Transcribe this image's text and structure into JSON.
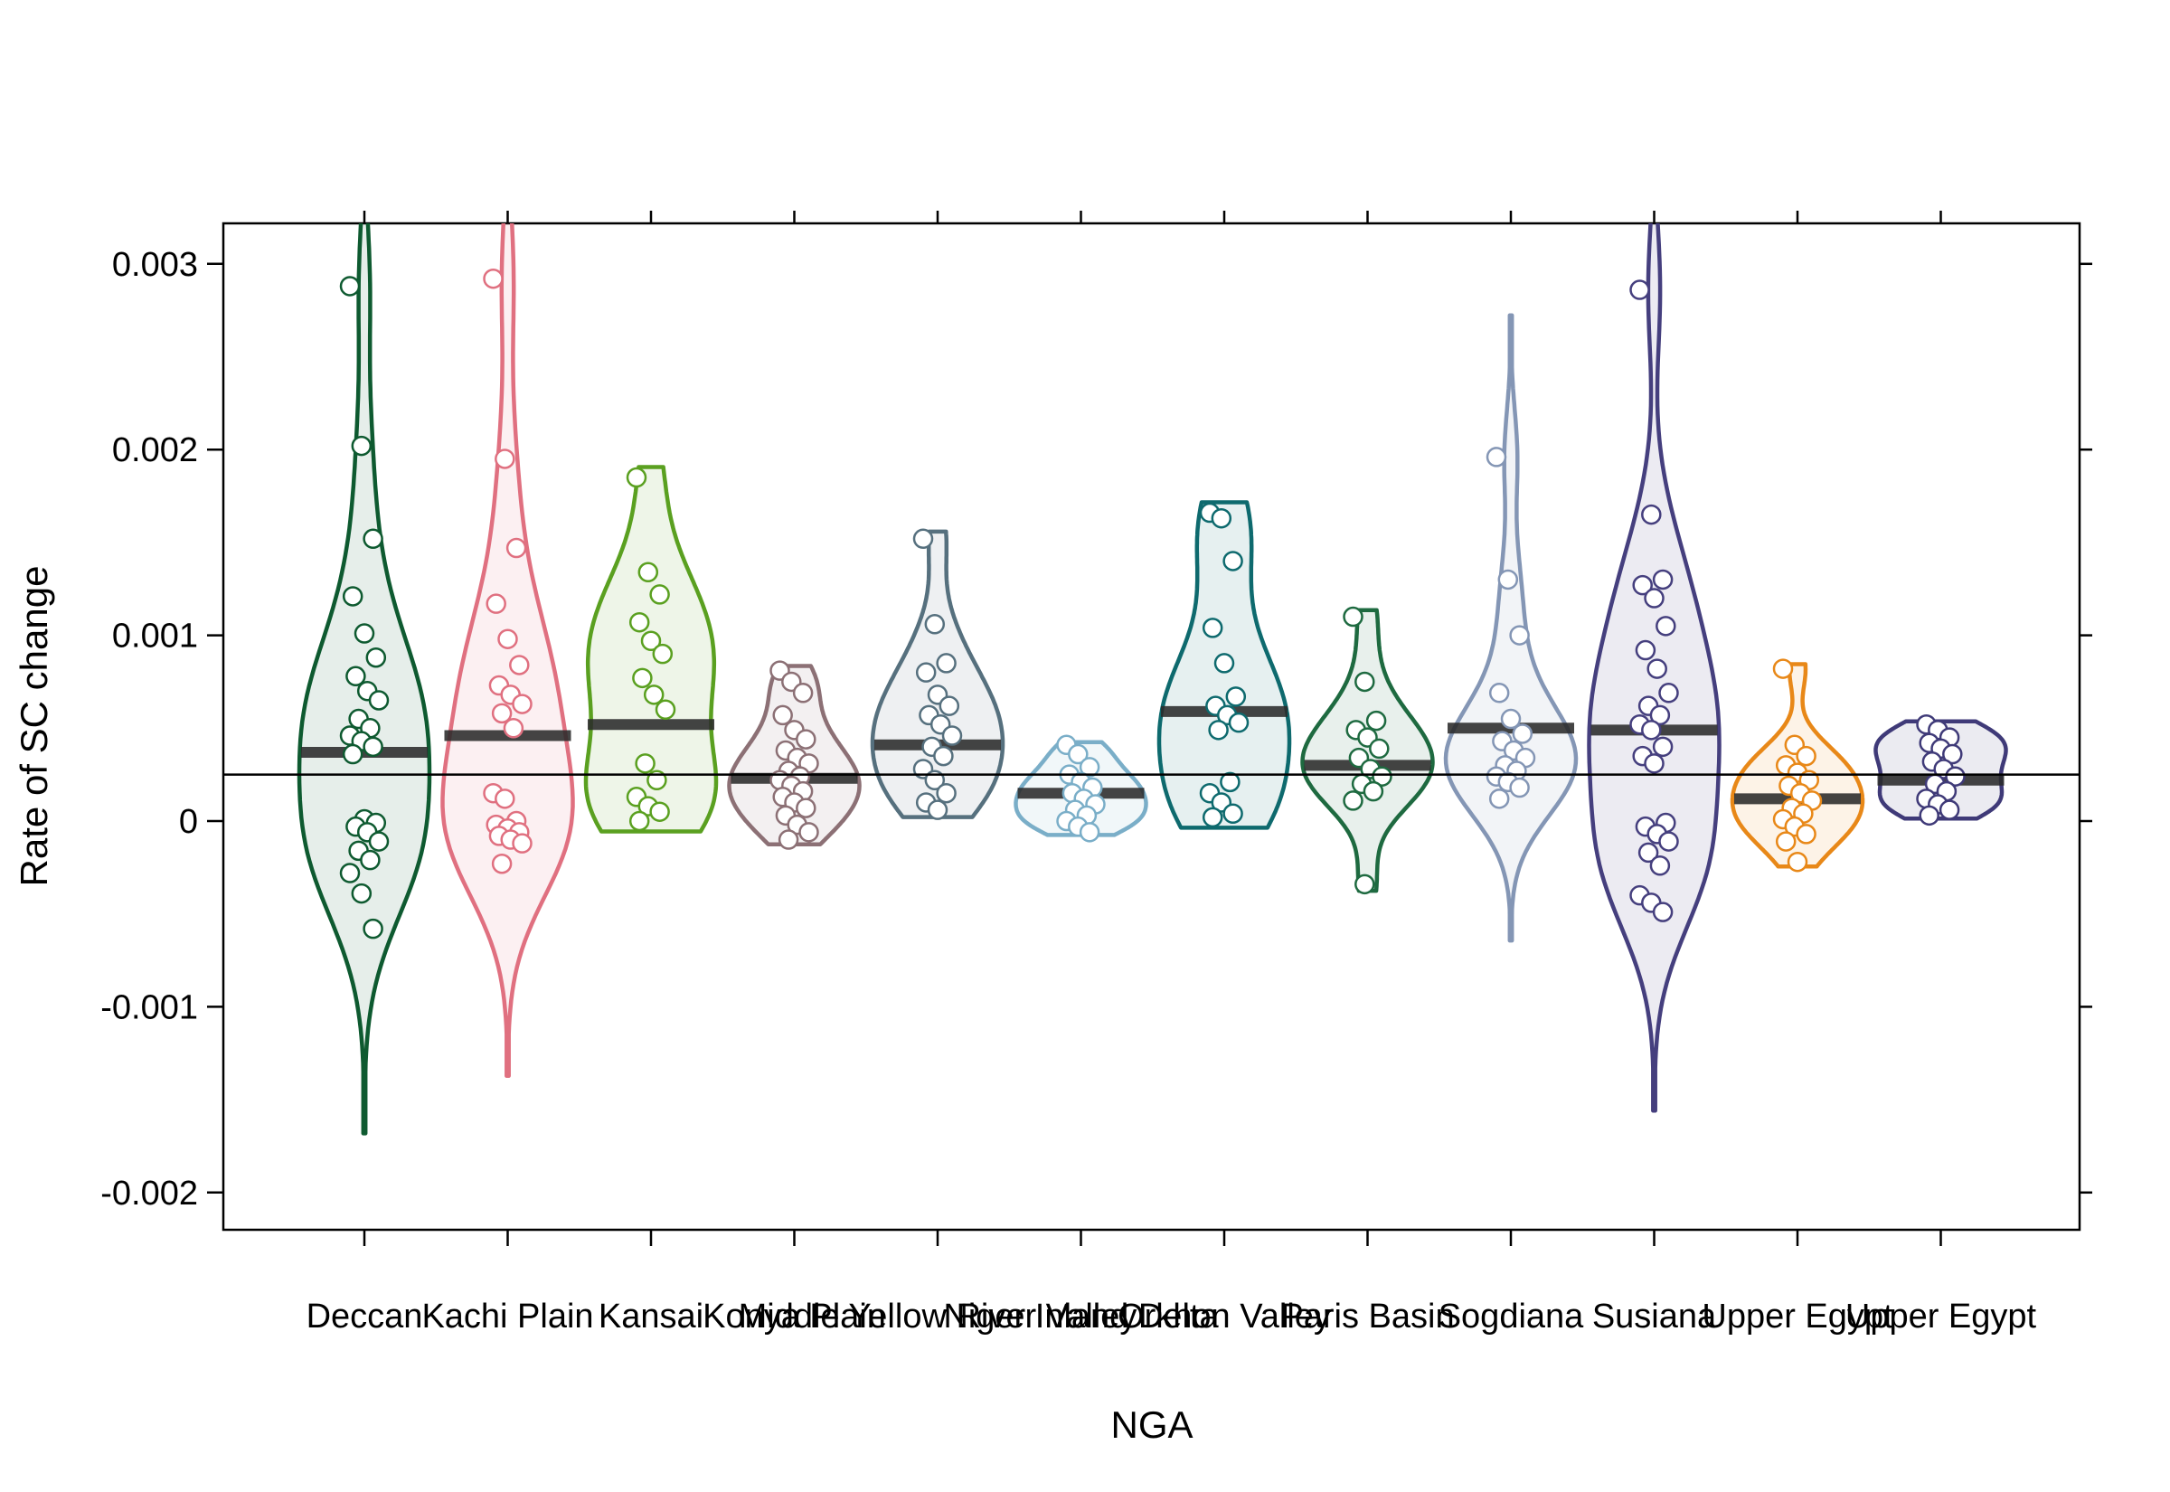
{
  "chart_data": {
    "type": "violin",
    "xlabel": "NGA",
    "ylabel": "Rate of SC change",
    "ylim": [
      -0.0022,
      0.0032
    ],
    "yticks": [
      0.003,
      0.002,
      0.001,
      0,
      -0.001,
      -0.002
    ],
    "ytick_labels": [
      "0.003",
      "0.002",
      "0.001",
      "0",
      "-0.001",
      "-0.002"
    ],
    "reference_line": 0.00025,
    "grid": false,
    "categories": [
      {
        "label": "Deccan",
        "color": "#0e5a30",
        "mean": 0.00037,
        "points": [
          0.00288,
          0.00202,
          0.00152,
          0.00121,
          0.00101,
          0.00088,
          0.00078,
          0.0007,
          0.00065,
          0.00055,
          0.0005,
          0.00046,
          0.00043,
          0.0004,
          0.00036,
          1e-05,
          -1e-05,
          -3e-05,
          -6e-05,
          -0.00011,
          -0.00016,
          -0.00021,
          -0.00028,
          -0.00039,
          -0.00058
        ]
      },
      {
        "label": "Kachi Plain",
        "color": "#e07080",
        "mean": 0.00046,
        "points": [
          0.00292,
          0.00195,
          0.00147,
          0.00117,
          0.00098,
          0.00084,
          0.00073,
          0.00068,
          0.00063,
          0.00058,
          0.0005,
          0.00015,
          0.00012,
          0.0,
          -2e-05,
          -4e-05,
          -6e-05,
          -8e-05,
          -0.0001,
          -0.00012,
          -0.00023
        ]
      },
      {
        "label": "Kansai",
        "color": "#5aa020",
        "mean": 0.00052,
        "points": [
          0.00185,
          0.00134,
          0.00122,
          0.00107,
          0.00097,
          0.0009,
          0.00077,
          0.00068,
          0.0006,
          0.00031,
          0.00022,
          0.00013,
          8e-05,
          5e-05,
          0.0
        ]
      },
      {
        "label": "Konya Plain",
        "color": "#8c7075",
        "mean": 0.00023,
        "points": [
          0.00081,
          0.00075,
          0.00069,
          0.00057,
          0.00049,
          0.00044,
          0.00038,
          0.00034,
          0.00031,
          0.00027,
          0.00024,
          0.00022,
          0.00019,
          0.00016,
          0.00013,
          0.0001,
          7e-05,
          3e-05,
          -2e-05,
          -6e-05,
          -0.0001
        ]
      },
      {
        "label": "Middle Yellow River Valley",
        "color": "#56707e",
        "mean": 0.00041,
        "points": [
          0.00152,
          0.00106,
          0.00085,
          0.0008,
          0.00068,
          0.00062,
          0.00057,
          0.00052,
          0.00046,
          0.0004,
          0.00035,
          0.00028,
          0.00022,
          0.00015,
          0.0001,
          6e-05
        ]
      },
      {
        "label": "Niger Inland Delta",
        "color": "#7aaec8",
        "mean": 0.00015,
        "points": [
          0.00041,
          0.00036,
          0.00029,
          0.00025,
          0.00021,
          0.00018,
          0.00015,
          0.00012,
          9e-05,
          6e-05,
          3e-05,
          0.0,
          -3e-05,
          -6e-05
        ]
      },
      {
        "label": "Orkhon Valley",
        "color": "#0e6a6e",
        "mean": 0.00059,
        "points": [
          0.00166,
          0.00163,
          0.0014,
          0.00104,
          0.00085,
          0.00067,
          0.00062,
          0.00057,
          0.00053,
          0.00049,
          0.00021,
          0.00015,
          0.0001,
          4e-05,
          2e-05
        ]
      },
      {
        "label": "Paris Basin",
        "color": "#1e6a40",
        "mean": 0.0003,
        "points": [
          0.0011,
          0.00075,
          0.00054,
          0.00049,
          0.00045,
          0.00039,
          0.00034,
          0.00028,
          0.00024,
          0.0002,
          0.00016,
          0.00011,
          -0.00034
        ]
      },
      {
        "label": "Sogdiana",
        "color": "#8496b5",
        "mean": 0.0005,
        "points": [
          0.00196,
          0.0013,
          0.001,
          0.00069,
          0.00055,
          0.00047,
          0.00043,
          0.00038,
          0.00034,
          0.0003,
          0.00027,
          0.00024,
          0.00021,
          0.00018,
          0.00012
        ]
      },
      {
        "label": "Susiana",
        "color": "#453f7e",
        "mean": 0.00049,
        "points": [
          0.00286,
          0.00165,
          0.0013,
          0.00127,
          0.0012,
          0.00105,
          0.00092,
          0.00082,
          0.00069,
          0.00062,
          0.00057,
          0.00052,
          0.00049,
          0.0004,
          0.00035,
          0.00031,
          -1e-05,
          -3e-05,
          -7e-05,
          -0.00011,
          -0.00017,
          -0.00024,
          -0.0004,
          -0.00044,
          -0.00049
        ]
      },
      {
        "label": "Upper Egypt",
        "color": "#e88818",
        "mean": 0.00012,
        "points": [
          0.00082,
          0.00041,
          0.00035,
          0.0003,
          0.00026,
          0.00022,
          0.00019,
          0.00015,
          0.00011,
          7e-05,
          4e-05,
          1e-05,
          -3e-05,
          -7e-05,
          -0.00011,
          -0.00022
        ]
      },
      {
        "label": "Upper Egypt",
        "color": "#3f3a78",
        "mean": 0.00022,
        "points": [
          0.00052,
          0.00049,
          0.00045,
          0.00042,
          0.00039,
          0.00036,
          0.00032,
          0.00028,
          0.00024,
          0.0002,
          0.00016,
          0.00012,
          9e-05,
          6e-05,
          3e-05
        ]
      }
    ]
  }
}
